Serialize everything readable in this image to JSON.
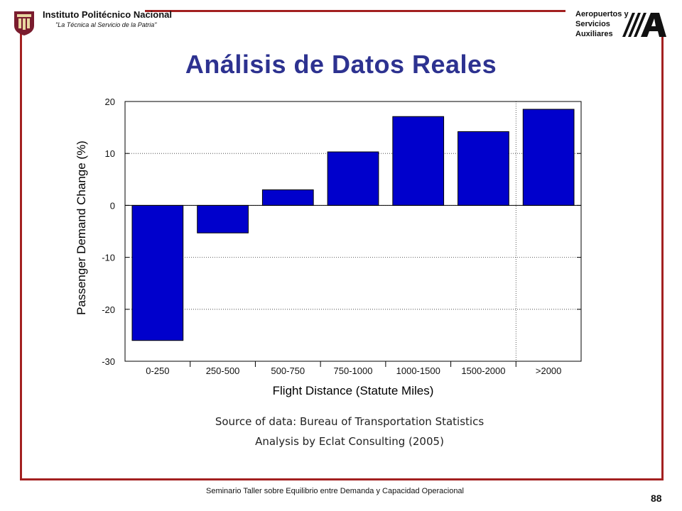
{
  "header": {
    "institution_name": "Instituto Politécnico Nacional",
    "institution_motto": "\"La Técnica al Servicio de la Patria\"",
    "partner_lines": [
      "Aeropuertos y",
      "Servicios",
      "Auxiliares"
    ],
    "partner_logo_letter": "A"
  },
  "slide": {
    "title": "Análisis de Datos Reales",
    "source_line_1": "Source of data: Bureau of Transportation Statistics",
    "source_line_2": "Analysis by Eclat Consulting (2005)"
  },
  "footer": {
    "text": "Seminario Taller sobre Equilibrio entre Demanda y Capacidad Operacional",
    "page_number": "88"
  },
  "colors": {
    "frame": "#a32020",
    "title": "#2d3290",
    "bar_fill": "#0000cc"
  },
  "chart_data": {
    "type": "bar",
    "categories": [
      "0-250",
      "250-500",
      "500-750",
      "750-1000",
      "1000-1500",
      "1500-2000",
      ">2000"
    ],
    "values": [
      -26,
      -5.3,
      3,
      10.3,
      17.1,
      14.2,
      18.5
    ],
    "title": "",
    "xlabel": "Flight Distance (Statute Miles)",
    "ylabel": "Passenger Demand Change (%)",
    "ylim": [
      -30,
      20
    ],
    "yticks": [
      "20",
      "10",
      "0",
      "-10",
      "-20",
      "-30"
    ],
    "grid": "horizontal dotted gridlines",
    "separator_after_category": "1500-2000"
  }
}
